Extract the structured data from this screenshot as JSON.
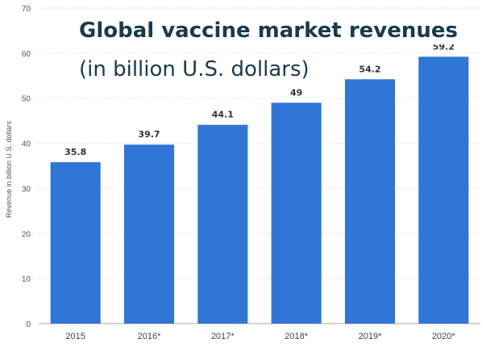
{
  "chart_data": {
    "type": "bar",
    "title_line1": "Global vaccine market revenues",
    "title_line2": "(in billion U.S. dollars)",
    "ylabel": "Revenue in billion U.S. dollars",
    "xlabel": "",
    "categories": [
      "2015",
      "2016*",
      "2017*",
      "2018*",
      "2019*",
      "2020*"
    ],
    "values": [
      35.8,
      39.7,
      44.1,
      49,
      54.2,
      59.2
    ],
    "value_labels": [
      "35.8",
      "39.7",
      "44.1",
      "49",
      "54.2",
      "59.2"
    ],
    "ylim": [
      0,
      70
    ],
    "yticks": [
      0,
      10,
      20,
      30,
      40,
      50,
      60,
      70
    ],
    "grid": true,
    "bar_color": "#2f76d6",
    "grid_color": "#d6d6d6"
  }
}
